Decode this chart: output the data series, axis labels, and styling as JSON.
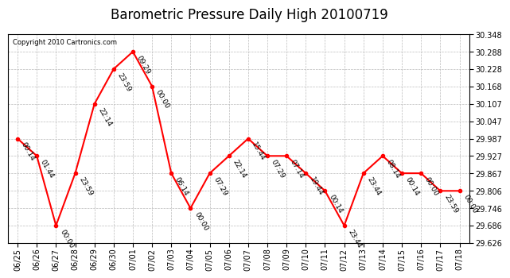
{
  "title": "Barometric Pressure Daily High 20100719",
  "copyright": "Copyright 2010 Cartronics.com",
  "x_labels": [
    "06/25",
    "06/26",
    "06/27",
    "06/28",
    "06/29",
    "06/30",
    "07/01",
    "07/02",
    "07/03",
    "07/04",
    "07/05",
    "07/06",
    "07/07",
    "07/08",
    "07/09",
    "07/10",
    "07/11",
    "07/12",
    "07/13",
    "07/14",
    "07/15",
    "07/16",
    "07/17",
    "07/18"
  ],
  "y_values": [
    29.987,
    29.927,
    29.686,
    29.867,
    30.107,
    30.228,
    30.288,
    30.168,
    29.867,
    29.746,
    29.867,
    29.927,
    29.987,
    29.927,
    29.927,
    29.867,
    29.806,
    29.686,
    29.867,
    29.927,
    29.867,
    29.867,
    29.806,
    29.806
  ],
  "point_labels": [
    "00:14",
    "01:44",
    "00:00",
    "23:59",
    "22:14",
    "23:59",
    "09:29",
    "00:00",
    "06:14",
    "00:00",
    "07:29",
    "22:14",
    "15:44",
    "07:29",
    "07:14",
    "19:44",
    "00:14",
    "23:44",
    "23:44",
    "08:14",
    "00:14",
    "00:00",
    "23:59",
    "00:00"
  ],
  "y_min": 29.626,
  "y_max": 30.348,
  "y_ticks": [
    29.626,
    29.686,
    29.746,
    29.806,
    29.867,
    29.927,
    29.987,
    30.047,
    30.107,
    30.168,
    30.228,
    30.288,
    30.348
  ],
  "line_color": "red",
  "marker_color": "red",
  "marker_size": 3,
  "background_color": "white",
  "grid_color": "#bbbbbb",
  "title_fontsize": 12,
  "tick_fontsize": 7,
  "annotation_fontsize": 6.5
}
